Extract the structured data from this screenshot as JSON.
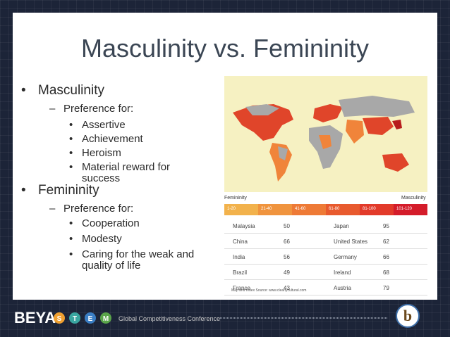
{
  "title": "Masculinity vs. Femininity",
  "bullets": [
    {
      "text": "Masculinity",
      "sub": "Preference for:",
      "items": [
        "Assertive",
        "Achievement",
        "Heroism",
        "Material reward for success"
      ]
    },
    {
      "text": "Femininity",
      "sub": "Preference for:",
      "items": [
        "Cooperation",
        "Modesty",
        "Caring for the weak and quality of life"
      ]
    }
  ],
  "legend": {
    "left": "Femininity",
    "right": "Masculinity",
    "ranges": [
      "1-20",
      "21-40",
      "41-60",
      "61-80",
      "81-100",
      "101-120"
    ]
  },
  "table": {
    "rows": [
      [
        "Malaysia",
        50,
        "Japan",
        95
      ],
      [
        "China",
        66,
        "United States",
        62
      ],
      [
        "India",
        56,
        "Germany",
        66
      ],
      [
        "Brazil",
        49,
        "Ireland",
        68
      ],
      [
        "France",
        43,
        "Austria",
        79
      ]
    ]
  },
  "source": "Map and Index Source: www.clearlycultural.com",
  "footer": {
    "brand": "BEYA",
    "letters": [
      "S",
      "T",
      "E",
      "M"
    ],
    "conference": "Global Competitiveness Conference",
    "logo": "b"
  }
}
